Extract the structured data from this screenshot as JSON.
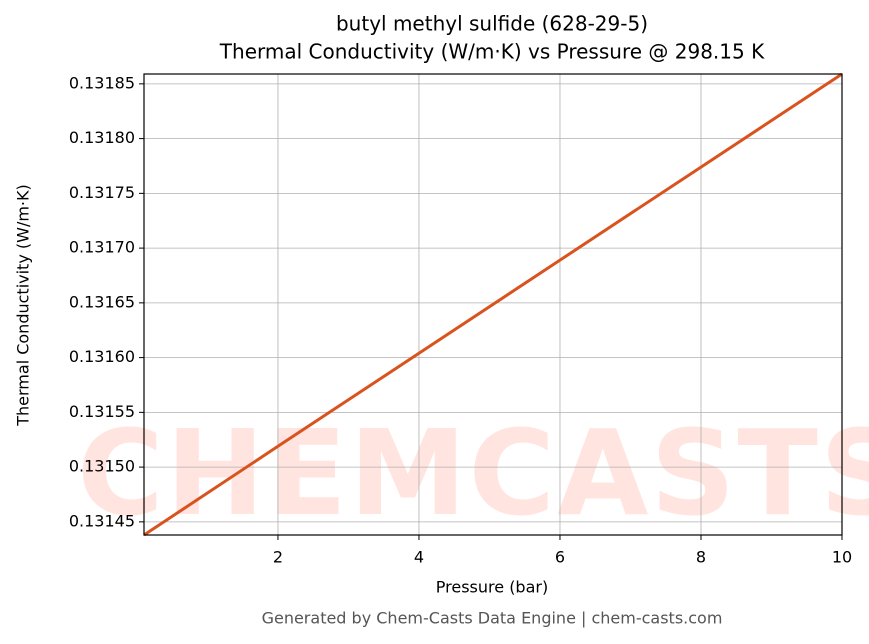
{
  "chart_data": {
    "type": "line",
    "title": "butyl methyl sulfide (628-29-5)",
    "subtitle": "Thermal Conductivity (W/m·K) vs Pressure @ 298.15 K",
    "x_label": "Pressure (bar)",
    "y_label": "Thermal Conductivity (W/m·K)",
    "footer": "Generated by Chem-Casts Data Engine | chem-casts.com",
    "watermark": "CHEMCASTS",
    "x": [
      0.1,
      2,
      4,
      6,
      8,
      10
    ],
    "series": [
      {
        "name": "Thermal Conductivity",
        "color": "#d9531e",
        "values": [
          0.131438,
          0.131519,
          0.131604,
          0.131689,
          0.131774,
          0.131859
        ]
      }
    ],
    "xlim": [
      0.1,
      10
    ],
    "ylim": [
      0.131438,
      0.131859
    ],
    "xticks": [
      2,
      4,
      6,
      8,
      10
    ],
    "yticks": [
      0.13145,
      {
        "value": 0.1315,
        "label": "0.13150"
      },
      0.13155,
      {
        "value": 0.1316,
        "label": "0.13160"
      },
      0.13165,
      {
        "value": 0.1317,
        "label": "0.13170"
      },
      0.13175,
      {
        "value": 0.1318,
        "label": "0.13180"
      },
      0.13185
    ],
    "grid": true
  }
}
